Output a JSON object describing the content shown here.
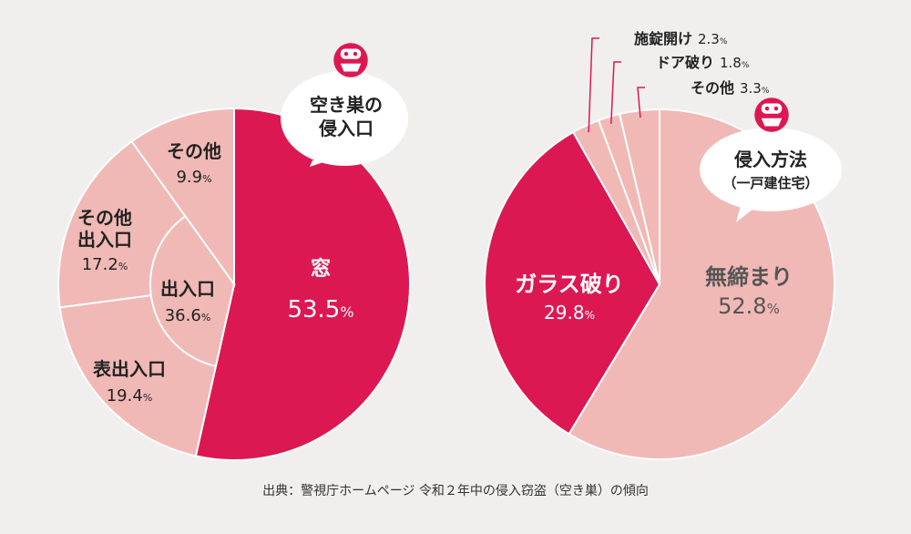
{
  "chart_data": [
    {
      "type": "pie",
      "title": "空き巣の 侵入口",
      "title_lines": [
        "空き巣の",
        "侵入口"
      ],
      "colors": {
        "main": "#dc1853",
        "light": "#f0b9b6"
      },
      "outer_slices": [
        {
          "label": "窓",
          "value": 53.5,
          "percent_text": "53.5%"
        },
        {
          "label": "表出入口",
          "value": 19.4,
          "percent_text": "19.4%"
        },
        {
          "label": "その他 出入口",
          "label_lines": [
            "その他",
            "出入口"
          ],
          "value": 17.2,
          "percent_text": "17.2%"
        },
        {
          "label": "その他",
          "value": 9.9,
          "percent_text": "9.9%"
        }
      ],
      "inner_group": {
        "label": "出入口",
        "value": 36.6,
        "percent_text": "36.6%",
        "members": [
          "表出入口",
          "その他 出入口"
        ]
      }
    },
    {
      "type": "pie",
      "title": "侵入方法 （一戸建住宅）",
      "title_lines": [
        "侵入方法",
        "（一戸建住宅）"
      ],
      "colors": {
        "main": "#dc1853",
        "light": "#f0b9b6"
      },
      "slices": [
        {
          "label": "無締まり",
          "value": 52.8,
          "percent_text": "52.8%"
        },
        {
          "label": "ガラス破り",
          "value": 29.8,
          "percent_text": "29.8%"
        },
        {
          "label": "施錠開け",
          "value": 2.3,
          "percent_text": "2.3%"
        },
        {
          "label": "ドア破り",
          "value": 1.8,
          "percent_text": "1.8%"
        },
        {
          "label": "その他",
          "value": 3.3,
          "percent_text": "3.3%"
        }
      ]
    }
  ],
  "icons": [
    "burglar-icon",
    "burglar-icon"
  ],
  "source_note": "出典：警視庁ホームページ 令和２年中の侵入窃盗（空き巣）の傾向"
}
